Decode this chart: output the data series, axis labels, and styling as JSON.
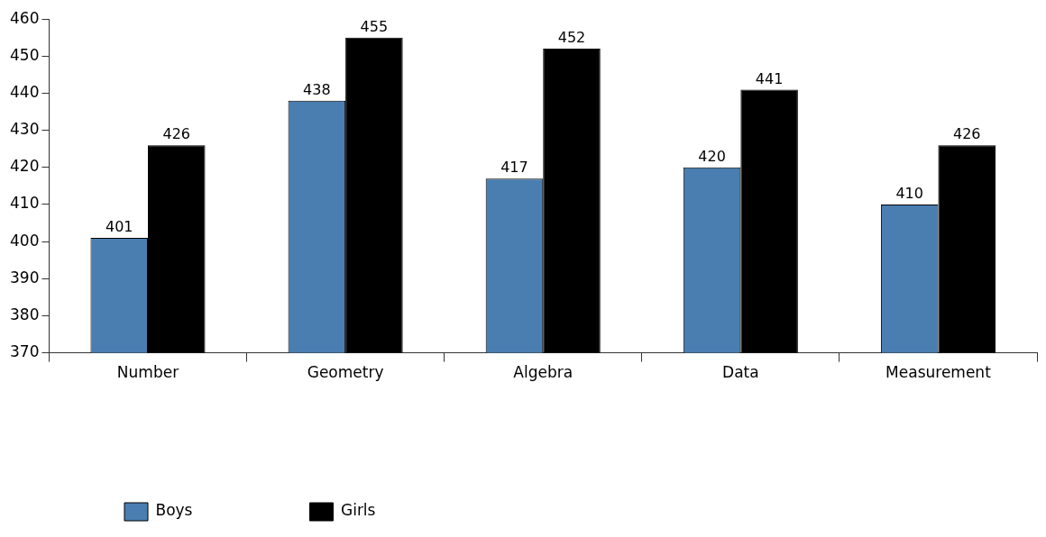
{
  "chart_data": {
    "type": "bar",
    "categories": [
      "Number",
      "Geometry",
      "Algebra",
      "Data",
      "Measurement"
    ],
    "series": [
      {
        "name": "Boys",
        "color": "#4a7eb0",
        "values": [
          401,
          438,
          417,
          420,
          410
        ]
      },
      {
        "name": "Girls",
        "color": "#000000",
        "values": [
          426,
          455,
          452,
          441,
          426
        ]
      }
    ],
    "ylim": [
      370,
      460
    ],
    "yticks": [
      370,
      380,
      390,
      400,
      410,
      420,
      430,
      440,
      450,
      460
    ],
    "grid": false,
    "legend": "bottom left",
    "data_labels": true
  }
}
